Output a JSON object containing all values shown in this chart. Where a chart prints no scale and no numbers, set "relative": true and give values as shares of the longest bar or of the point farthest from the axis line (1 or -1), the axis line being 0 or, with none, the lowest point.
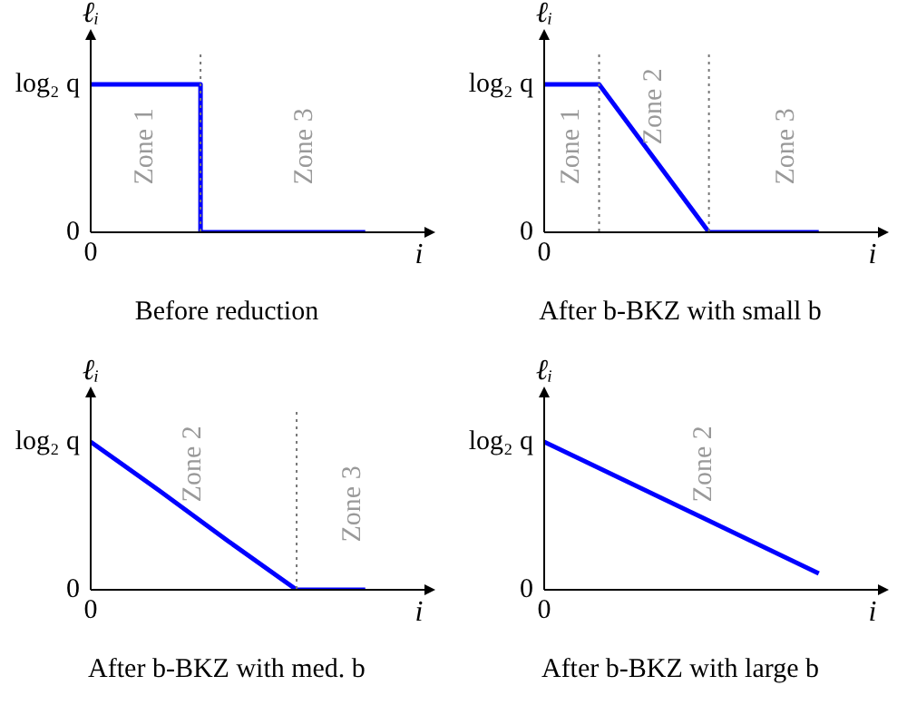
{
  "chart_data": [
    {
      "type": "step",
      "title": "Before reduction",
      "xlabel": "i",
      "ylabel": "ℓᵢ",
      "color": "#0000ff",
      "marker": "none",
      "grid": false,
      "relative": true,
      "categories": [
        null,
        null,
        null,
        null,
        null,
        null
      ],
      "values": [
        1,
        1,
        0,
        0,
        0,
        0
      ],
      "annotations": [
        "0",
        "0",
        "log₂ q",
        "Zone 1",
        "Zone 3"
      ]
    },
    {
      "type": "line",
      "title": "After b-BKZ with small b",
      "xlabel": "i",
      "ylabel": "ℓᵢ",
      "color": "#0000ff",
      "marker": "none",
      "grid": false,
      "relative": true,
      "categories": [
        null,
        null,
        null,
        null,
        null,
        null
      ],
      "values": [
        1,
        1,
        0.5,
        0,
        0,
        0
      ],
      "annotations": [
        "0",
        "0",
        "log₂ q",
        "Zone 1",
        "Zone 2",
        "Zone 3"
      ]
    },
    {
      "type": "line",
      "title": "After b-BKZ with med. b",
      "xlabel": "i",
      "ylabel": "ℓᵢ",
      "color": "#0000ff",
      "marker": "none",
      "grid": false,
      "relative": true,
      "categories": [
        null,
        null,
        null,
        null,
        null
      ],
      "values": [
        1,
        0.67,
        0.33,
        0,
        0
      ],
      "annotations": [
        "0",
        "0",
        "log₂ q",
        "Zone 2",
        "Zone 3"
      ]
    },
    {
      "type": "line",
      "title": "After b-BKZ with large b",
      "xlabel": "i",
      "ylabel": "ℓᵢ",
      "color": "#0000ff",
      "marker": "none",
      "grid": false,
      "relative": true,
      "categories": [
        null,
        null
      ],
      "values": [
        1,
        0.11
      ],
      "annotations": [
        "0",
        "0",
        "log₂ q",
        "Zone 2"
      ]
    }
  ]
}
